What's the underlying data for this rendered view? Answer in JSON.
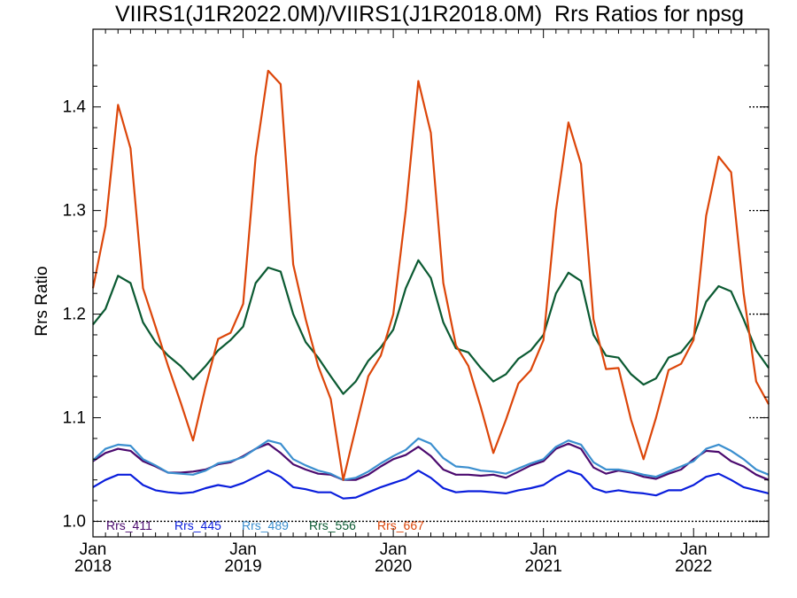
{
  "chart_data": {
    "type": "line",
    "title": "VIIRS1(J1R2022.0M)/VIIRS1(J1R2018.0M)  Rrs Ratios for npsg",
    "xlabel": "",
    "ylabel": "Rrs Ratio",
    "ylim": [
      0.985,
      1.475
    ],
    "xlim": [
      "2018-01",
      "2022-07"
    ],
    "x_ticks": [
      {
        "label": "Jan\n2018",
        "month": "2018-01"
      },
      {
        "label": "Jan\n2019",
        "month": "2019-01"
      },
      {
        "label": "Jan\n2020",
        "month": "2020-01"
      },
      {
        "label": "Jan\n2021",
        "month": "2021-01"
      },
      {
        "label": "Jan\n2022",
        "month": "2022-01"
      }
    ],
    "y_ticks": [
      1.0,
      1.1,
      1.2,
      1.3,
      1.4
    ],
    "reference_lines": [
      1.0
    ],
    "legend_position": "bottom-left inside",
    "x": [
      "2018-01",
      "2018-02",
      "2018-03",
      "2018-04",
      "2018-05",
      "2018-06",
      "2018-07",
      "2018-08",
      "2018-09",
      "2018-10",
      "2018-11",
      "2018-12",
      "2019-01",
      "2019-02",
      "2019-03",
      "2019-04",
      "2019-05",
      "2019-06",
      "2019-07",
      "2019-08",
      "2019-09",
      "2019-10",
      "2019-11",
      "2019-12",
      "2020-01",
      "2020-02",
      "2020-03",
      "2020-04",
      "2020-05",
      "2020-06",
      "2020-07",
      "2020-08",
      "2020-09",
      "2020-10",
      "2020-11",
      "2020-12",
      "2021-01",
      "2021-02",
      "2021-03",
      "2021-04",
      "2021-05",
      "2021-06",
      "2021-07",
      "2021-08",
      "2021-09",
      "2021-10",
      "2021-11",
      "2021-12",
      "2022-01",
      "2022-02",
      "2022-03",
      "2022-04",
      "2022-05",
      "2022-06",
      "2022-07"
    ],
    "series": [
      {
        "name": "Rrs_411",
        "color": "#4b0a6e",
        "values": [
          1.058,
          1.066,
          1.07,
          1.068,
          1.058,
          1.053,
          1.047,
          1.047,
          1.048,
          1.05,
          1.055,
          1.057,
          1.063,
          1.07,
          1.075,
          1.066,
          1.055,
          1.05,
          1.046,
          1.045,
          1.04,
          1.04,
          1.045,
          1.053,
          1.06,
          1.064,
          1.072,
          1.063,
          1.05,
          1.045,
          1.045,
          1.044,
          1.045,
          1.042,
          1.048,
          1.054,
          1.058,
          1.07,
          1.075,
          1.07,
          1.052,
          1.046,
          1.049,
          1.047,
          1.043,
          1.041,
          1.046,
          1.05,
          1.06,
          1.068,
          1.067,
          1.058,
          1.053,
          1.045,
          1.04
        ]
      },
      {
        "name": "Rrs_445",
        "color": "#0a1edc",
        "values": [
          1.033,
          1.04,
          1.045,
          1.045,
          1.035,
          1.03,
          1.028,
          1.027,
          1.028,
          1.032,
          1.035,
          1.033,
          1.037,
          1.043,
          1.049,
          1.043,
          1.033,
          1.031,
          1.028,
          1.028,
          1.022,
          1.023,
          1.028,
          1.033,
          1.037,
          1.041,
          1.049,
          1.042,
          1.032,
          1.028,
          1.029,
          1.029,
          1.028,
          1.027,
          1.03,
          1.032,
          1.035,
          1.043,
          1.049,
          1.045,
          1.032,
          1.028,
          1.03,
          1.028,
          1.027,
          1.025,
          1.03,
          1.03,
          1.035,
          1.043,
          1.046,
          1.04,
          1.033,
          1.03,
          1.027
        ]
      },
      {
        "name": "Rrs_489",
        "color": "#3b8fcf",
        "values": [
          1.059,
          1.07,
          1.074,
          1.073,
          1.06,
          1.054,
          1.047,
          1.046,
          1.045,
          1.049,
          1.056,
          1.058,
          1.062,
          1.07,
          1.078,
          1.075,
          1.06,
          1.054,
          1.049,
          1.046,
          1.04,
          1.042,
          1.048,
          1.056,
          1.063,
          1.069,
          1.08,
          1.075,
          1.061,
          1.053,
          1.052,
          1.049,
          1.048,
          1.046,
          1.051,
          1.056,
          1.06,
          1.072,
          1.078,
          1.074,
          1.057,
          1.05,
          1.05,
          1.048,
          1.045,
          1.043,
          1.048,
          1.053,
          1.058,
          1.07,
          1.074,
          1.068,
          1.06,
          1.05,
          1.045
        ]
      },
      {
        "name": "Rrs_556",
        "color": "#0b5a32",
        "values": [
          1.19,
          1.205,
          1.237,
          1.23,
          1.192,
          1.173,
          1.16,
          1.15,
          1.137,
          1.15,
          1.165,
          1.175,
          1.188,
          1.23,
          1.245,
          1.241,
          1.2,
          1.173,
          1.158,
          1.14,
          1.123,
          1.135,
          1.155,
          1.168,
          1.185,
          1.225,
          1.252,
          1.235,
          1.192,
          1.167,
          1.163,
          1.148,
          1.135,
          1.142,
          1.157,
          1.165,
          1.18,
          1.22,
          1.24,
          1.232,
          1.18,
          1.16,
          1.158,
          1.142,
          1.132,
          1.138,
          1.158,
          1.163,
          1.178,
          1.212,
          1.227,
          1.222,
          1.195,
          1.165,
          1.148
        ]
      },
      {
        "name": "Rrs_667",
        "color": "#dc460a",
        "values": [
          1.225,
          1.285,
          1.402,
          1.36,
          1.225,
          1.188,
          1.15,
          1.115,
          1.078,
          1.13,
          1.176,
          1.182,
          1.21,
          1.352,
          1.435,
          1.422,
          1.248,
          1.195,
          1.15,
          1.118,
          1.04,
          1.09,
          1.14,
          1.16,
          1.2,
          1.3,
          1.425,
          1.375,
          1.23,
          1.17,
          1.15,
          1.11,
          1.066,
          1.098,
          1.133,
          1.146,
          1.175,
          1.3,
          1.385,
          1.345,
          1.195,
          1.147,
          1.148,
          1.098,
          1.06,
          1.1,
          1.146,
          1.152,
          1.175,
          1.295,
          1.352,
          1.337,
          1.22,
          1.135,
          1.113
        ]
      }
    ]
  }
}
